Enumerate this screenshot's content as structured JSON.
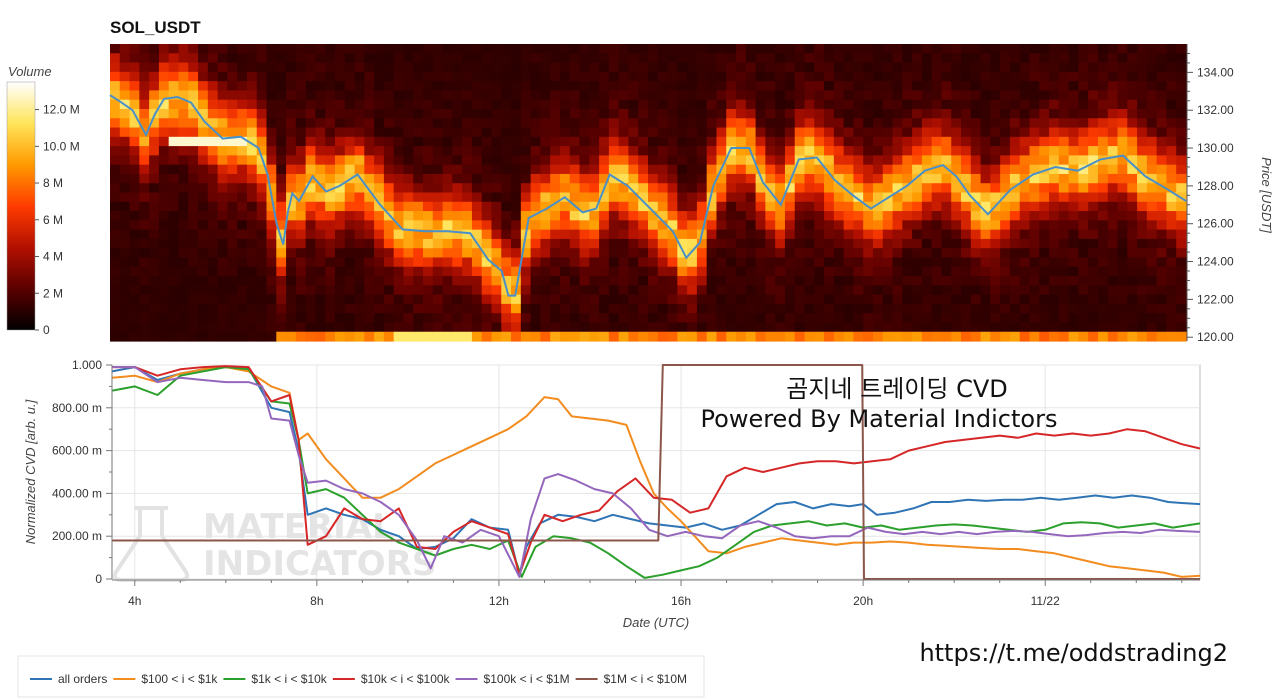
{
  "chart_data": [
    {
      "type": "heatmap",
      "title": "SOL_USDT",
      "ylabel": "Price [USDT]",
      "ylim": [
        119.8,
        135.5
      ],
      "yticks": [
        "120.00",
        "122.00",
        "124.00",
        "126.00",
        "128.00",
        "130.00",
        "132.00",
        "134.00"
      ],
      "colorbar": {
        "label": "Volume",
        "ticks": [
          "0",
          "2 M",
          "4 M",
          "6 M",
          "8 M",
          "10.0 M",
          "12.0 M"
        ],
        "range": [
          0,
          13.5
        ],
        "colors": [
          "#000000",
          "#5a0000",
          "#b31000",
          "#ff3c00",
          "#ff9a00",
          "#ffe55a",
          "#ffffff"
        ]
      },
      "price_series": {
        "name": "Price",
        "color": "#4a90c8",
        "x": [
          3.5,
          3.7,
          4.0,
          4.3,
          4.5,
          4.7,
          5.0,
          5.3,
          5.6,
          6.0,
          6.4,
          6.8,
          7.0,
          7.2,
          7.35,
          7.45,
          7.55,
          7.7,
          8.0,
          8.3,
          8.6,
          9.0,
          9.5,
          10.0,
          10.5,
          11.0,
          11.5,
          11.9,
          12.2,
          12.35,
          12.5,
          12.8,
          13.2,
          13.6,
          14.0,
          14.3,
          14.6,
          15.0,
          15.5,
          16.0,
          16.3,
          16.6,
          16.9,
          17.3,
          17.7,
          18.0,
          18.4,
          18.8,
          19.2,
          19.6,
          20.0,
          20.4,
          20.8,
          21.2,
          21.6,
          22.0,
          22.3,
          22.6,
          23.0,
          23.5,
          24.0,
          24.5,
          25.0,
          25.5,
          26.0,
          26.5,
          27.0,
          27.4
        ],
        "y": [
          132.8,
          132.5,
          132.0,
          130.7,
          131.8,
          132.6,
          132.7,
          132.4,
          131.4,
          130.5,
          130.6,
          130.0,
          128.6,
          126.0,
          124.9,
          126.6,
          127.6,
          127.2,
          128.5,
          127.7,
          128.0,
          128.6,
          127.0,
          125.7,
          125.6,
          125.6,
          125.5,
          124.1,
          123.5,
          122.2,
          122.2,
          126.3,
          126.8,
          127.4,
          126.6,
          126.8,
          128.6,
          128.0,
          126.8,
          125.6,
          124.2,
          125.0,
          128.0,
          130.0,
          130.0,
          128.2,
          127.0,
          129.4,
          129.5,
          128.3,
          127.5,
          126.8,
          127.4,
          128.0,
          128.8,
          129.1,
          128.5,
          127.5,
          126.5,
          127.8,
          128.6,
          129.0,
          128.8,
          129.4,
          129.6,
          128.5,
          127.8,
          127.2
        ]
      }
    },
    {
      "type": "line",
      "xlabel": "Date (UTC)",
      "ylabel": "Normalized CVD [arb. u.]",
      "ylim": [
        0,
        1000
      ],
      "xlim": [
        3.5,
        27.4
      ],
      "xticks": [
        {
          "label": "4h",
          "x": 4
        },
        {
          "label": "8h",
          "x": 8
        },
        {
          "label": "12h",
          "x": 12
        },
        {
          "label": "16h",
          "x": 16
        },
        {
          "label": "20h",
          "x": 20
        },
        {
          "label": "11/22",
          "x": 24
        }
      ],
      "yticks": [
        "0",
        "200.00 m",
        "400.00 m",
        "600.00 m",
        "800.00 m",
        "1.000"
      ],
      "overlay_text": [
        "곰지네 트레이딩 CVD",
        "Powered By Material Indictors"
      ],
      "series": [
        {
          "name": "all orders",
          "color": "#2f75b5",
          "x": [
            3.5,
            4.0,
            4.5,
            5.0,
            5.5,
            6.0,
            6.5,
            7.0,
            7.4,
            7.6,
            7.8,
            8.2,
            8.6,
            9.0,
            9.4,
            9.8,
            10.2,
            10.6,
            11.0,
            11.4,
            11.8,
            12.2,
            12.45,
            12.6,
            12.9,
            13.3,
            13.7,
            14.1,
            14.5,
            14.9,
            15.3,
            15.7,
            16.1,
            16.5,
            16.9,
            17.3,
            17.7,
            18.1,
            18.5,
            18.9,
            19.3,
            19.7,
            20.0,
            20.3,
            20.7,
            21.1,
            21.5,
            21.9,
            22.3,
            22.7,
            23.1,
            23.5,
            23.9,
            24.3,
            24.7,
            25.1,
            25.5,
            25.9,
            26.3,
            26.7,
            27.0,
            27.4
          ],
          "y": [
            970,
            990,
            930,
            960,
            980,
            990,
            985,
            800,
            780,
            600,
            300,
            330,
            300,
            280,
            230,
            200,
            140,
            150,
            190,
            280,
            240,
            230,
            20,
            150,
            260,
            300,
            290,
            270,
            300,
            280,
            260,
            250,
            240,
            260,
            230,
            250,
            300,
            350,
            360,
            330,
            350,
            340,
            350,
            300,
            310,
            330,
            360,
            360,
            370,
            365,
            370,
            370,
            380,
            370,
            380,
            390,
            380,
            390,
            380,
            360,
            355,
            350
          ]
        },
        {
          "name": "$100 < i < $1k",
          "color": "#f28c1e",
          "x": [
            3.5,
            4.0,
            4.5,
            5.0,
            5.5,
            6.0,
            6.5,
            7.0,
            7.4,
            7.6,
            7.8,
            8.2,
            8.6,
            9.0,
            9.4,
            9.8,
            10.2,
            10.6,
            11.0,
            11.4,
            11.8,
            12.2,
            12.6,
            13.0,
            13.3,
            13.6,
            14.0,
            14.4,
            14.8,
            15.1,
            15.4,
            15.7,
            16.0,
            16.3,
            16.6,
            17.0,
            17.4,
            17.8,
            18.2,
            18.6,
            19.0,
            19.4,
            19.8,
            20.2,
            20.6,
            21.0,
            21.4,
            21.8,
            22.2,
            22.6,
            23.0,
            23.4,
            23.8,
            24.2,
            24.6,
            25.0,
            25.4,
            25.8,
            26.2,
            26.6,
            27.0,
            27.4
          ],
          "y": [
            940,
            950,
            920,
            960,
            980,
            990,
            970,
            900,
            870,
            650,
            680,
            560,
            470,
            380,
            380,
            420,
            480,
            540,
            580,
            620,
            660,
            700,
            760,
            850,
            840,
            760,
            750,
            740,
            720,
            550,
            400,
            330,
            270,
            200,
            130,
            120,
            150,
            170,
            190,
            180,
            170,
            160,
            170,
            170,
            175,
            170,
            160,
            155,
            150,
            145,
            140,
            140,
            130,
            120,
            100,
            80,
            60,
            50,
            40,
            30,
            10,
            15
          ]
        },
        {
          "name": "$1k < i < $10k",
          "color": "#2ca02c",
          "x": [
            3.5,
            4.0,
            4.5,
            5.0,
            5.5,
            6.0,
            6.5,
            7.0,
            7.4,
            7.6,
            7.8,
            8.2,
            8.6,
            9.0,
            9.4,
            9.8,
            10.2,
            10.6,
            11.0,
            11.4,
            11.8,
            12.2,
            12.5,
            12.8,
            13.2,
            13.6,
            14.0,
            14.4,
            14.8,
            15.2,
            15.6,
            16.0,
            16.4,
            16.8,
            17.2,
            17.6,
            18.0,
            18.4,
            18.8,
            19.2,
            19.6,
            20.0,
            20.4,
            20.8,
            21.2,
            21.6,
            22.0,
            22.4,
            22.8,
            23.2,
            23.6,
            24.0,
            24.4,
            24.8,
            25.2,
            25.6,
            26.0,
            26.4,
            26.8,
            27.4
          ],
          "y": [
            880,
            900,
            860,
            950,
            970,
            990,
            980,
            830,
            820,
            650,
            400,
            420,
            380,
            300,
            220,
            170,
            140,
            110,
            140,
            160,
            140,
            180,
            10,
            150,
            200,
            190,
            170,
            120,
            60,
            5,
            20,
            40,
            60,
            100,
            160,
            220,
            250,
            260,
            270,
            250,
            260,
            240,
            250,
            230,
            240,
            250,
            255,
            250,
            240,
            230,
            220,
            230,
            260,
            265,
            260,
            240,
            250,
            260,
            240,
            260
          ]
        },
        {
          "name": "$10k < i < $100k",
          "color": "#d62728",
          "x": [
            3.5,
            4.0,
            4.5,
            5.0,
            5.5,
            6.0,
            6.5,
            7.0,
            7.4,
            7.6,
            7.8,
            8.2,
            8.6,
            9.0,
            9.4,
            9.8,
            10.2,
            10.6,
            11.0,
            11.4,
            11.8,
            12.2,
            12.45,
            12.7,
            13.0,
            13.4,
            13.8,
            14.2,
            14.6,
            15.0,
            15.4,
            15.8,
            16.2,
            16.6,
            17.0,
            17.4,
            17.8,
            18.2,
            18.6,
            19.0,
            19.4,
            19.8,
            20.2,
            20.6,
            21.0,
            21.4,
            21.8,
            22.2,
            22.6,
            23.0,
            23.4,
            23.8,
            24.2,
            24.6,
            25.0,
            25.4,
            25.8,
            26.2,
            26.6,
            27.0,
            27.4
          ],
          "y": [
            990,
            990,
            950,
            980,
            990,
            995,
            990,
            830,
            860,
            650,
            160,
            200,
            330,
            280,
            270,
            330,
            150,
            140,
            220,
            270,
            240,
            210,
            20,
            170,
            300,
            270,
            300,
            320,
            410,
            470,
            380,
            370,
            310,
            330,
            480,
            520,
            500,
            520,
            540,
            550,
            550,
            540,
            550,
            560,
            600,
            620,
            640,
            650,
            660,
            670,
            660,
            680,
            670,
            680,
            670,
            680,
            700,
            690,
            660,
            630,
            610
          ]
        },
        {
          "name": "$100k < i < $1M",
          "color": "#9467bd",
          "x": [
            3.5,
            4.0,
            4.5,
            5.0,
            5.5,
            6.0,
            6.5,
            6.8,
            7.0,
            7.4,
            7.6,
            7.8,
            8.2,
            8.6,
            9.0,
            9.4,
            9.8,
            10.2,
            10.5,
            10.8,
            11.2,
            11.6,
            12.0,
            12.45,
            12.7,
            13.0,
            13.3,
            13.7,
            14.1,
            14.5,
            14.9,
            15.3,
            15.7,
            16.1,
            16.5,
            16.9,
            17.3,
            17.7,
            18.1,
            18.5,
            18.9,
            19.3,
            19.7,
            20.1,
            20.5,
            20.9,
            21.3,
            21.7,
            22.1,
            22.5,
            22.9,
            23.3,
            23.7,
            24.1,
            24.5,
            24.9,
            25.3,
            25.7,
            26.1,
            26.5,
            26.9,
            27.4
          ],
          "y": [
            990,
            990,
            920,
            940,
            930,
            920,
            920,
            900,
            750,
            740,
            580,
            450,
            460,
            420,
            400,
            360,
            300,
            180,
            50,
            200,
            170,
            230,
            200,
            10,
            280,
            470,
            490,
            460,
            420,
            400,
            330,
            230,
            200,
            220,
            200,
            190,
            250,
            270,
            240,
            200,
            190,
            200,
            200,
            240,
            220,
            210,
            220,
            210,
            220,
            210,
            220,
            225,
            220,
            210,
            200,
            205,
            215,
            220,
            215,
            230,
            225,
            220
          ]
        },
        {
          "name": "$1M < i < $10M",
          "color": "#8c564b",
          "x": [
            3.5,
            15.5,
            15.6,
            19.98,
            20.02,
            27.4
          ],
          "y": [
            180,
            180,
            1000,
            1000,
            0,
            0
          ]
        }
      ]
    }
  ],
  "url_text": "https://t.me/oddstrading2",
  "watermark_text": [
    "MATERIAL",
    "INDICATORS"
  ]
}
